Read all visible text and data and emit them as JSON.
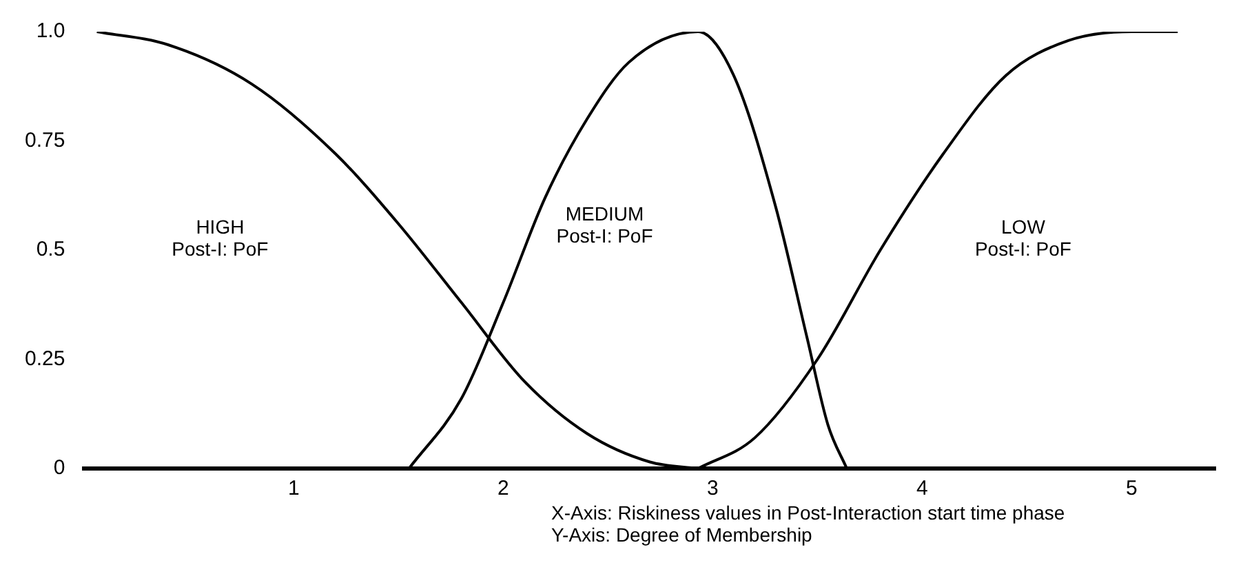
{
  "chart_data": {
    "type": "line",
    "xlim": [
      0,
      5.4
    ],
    "xticks": [
      1,
      2,
      3,
      4,
      5
    ],
    "ylim": [
      0,
      1
    ],
    "yticks": [
      0,
      0.25,
      0.5,
      0.75,
      {
        "value": 1,
        "label": "1.0"
      }
    ],
    "grid": false,
    "legend": false,
    "marker": "none",
    "line_style": "solid",
    "series": [
      {
        "color": "#000000",
        "x": [
          0.06,
          0.4,
          0.8,
          1.2,
          1.5,
          1.8,
          2.1,
          2.4,
          2.7,
          2.93
        ],
        "values": [
          1,
          0.97,
          0.88,
          0.72,
          0.56,
          0.38,
          0.2,
          0.08,
          0.015,
          0
        ]
      },
      {
        "color": "#000000",
        "x": [
          1.55,
          1.8,
          2.0,
          2.2,
          2.4,
          2.6,
          2.93,
          3.1,
          3.3,
          3.45,
          3.55,
          3.64
        ],
        "values": [
          0,
          0.16,
          0.38,
          0.62,
          0.8,
          0.93,
          1,
          0.9,
          0.6,
          0.3,
          0.1,
          0
        ]
      },
      {
        "color": "#000000",
        "x": [
          2.93,
          3.2,
          3.5,
          3.8,
          4.1,
          4.4,
          4.7,
          5.0,
          5.22
        ],
        "values": [
          0,
          0.07,
          0.25,
          0.5,
          0.72,
          0.9,
          0.98,
          1,
          1
        ]
      }
    ],
    "annotations": [
      "HIGH\nPost-I: PoF",
      "MEDIUM\nPost-I: PoF",
      "LOW\nPost-I: PoF",
      "X-Axis: Riskiness values in Post-Interaction start time phase\nY-Axis: Degree of Membership"
    ]
  }
}
